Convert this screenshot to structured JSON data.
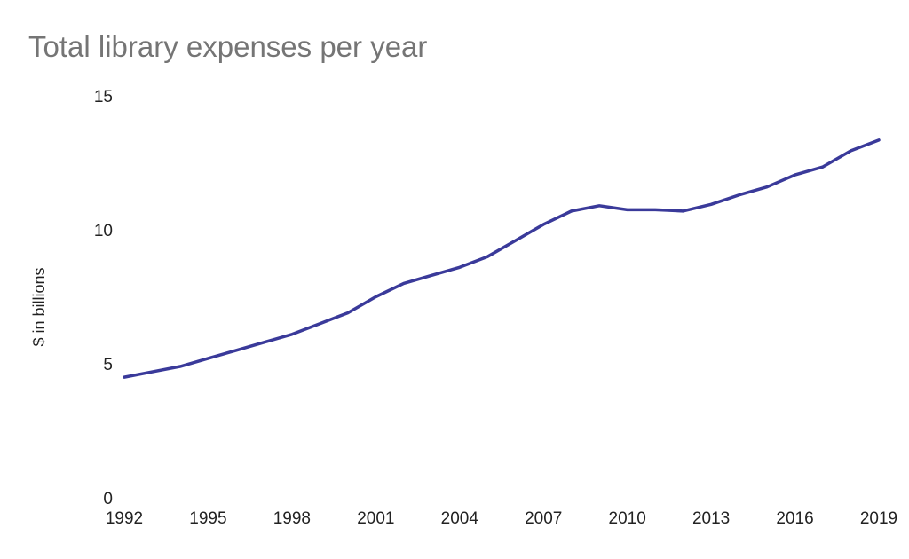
{
  "chart_data": {
    "type": "line",
    "title": "Total library expenses per year",
    "xlabel": "",
    "ylabel": "$ in billions",
    "x": [
      1992,
      1993,
      1994,
      1995,
      1996,
      1997,
      1998,
      1999,
      2000,
      2001,
      2002,
      2003,
      2004,
      2005,
      2006,
      2007,
      2008,
      2009,
      2010,
      2011,
      2012,
      2013,
      2014,
      2015,
      2016,
      2017,
      2018,
      2019
    ],
    "series": [
      {
        "values": [
          4.5,
          4.7,
          4.9,
          5.2,
          5.5,
          5.8,
          6.1,
          6.5,
          6.9,
          7.5,
          8.0,
          8.3,
          8.6,
          9.0,
          9.6,
          10.2,
          10.7,
          10.9,
          10.75,
          10.75,
          10.7,
          10.95,
          11.3,
          11.6,
          12.05,
          12.35,
          12.95,
          13.35
        ]
      }
    ],
    "xticks": [
      "1992",
      "1995",
      "1998",
      "2001",
      "2004",
      "2007",
      "2010",
      "2013",
      "2016",
      "2019"
    ],
    "yticks": [
      "0",
      "5",
      "10",
      "15"
    ],
    "xlim": [
      1992,
      2019
    ],
    "ylim": [
      0,
      15
    ],
    "grid": false,
    "legend": "none",
    "line_color": "#3a3a9a"
  }
}
